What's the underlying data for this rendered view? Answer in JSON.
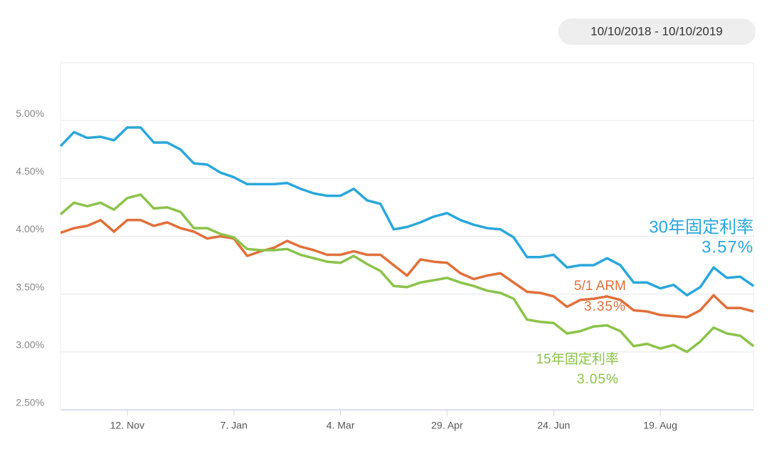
{
  "chart_data": {
    "type": "line",
    "subtitle": "10/10/2018 - 10/10/2019",
    "categories": [
      null,
      null,
      null,
      null,
      null,
      "12. Nov",
      null,
      null,
      null,
      null,
      null,
      null,
      null,
      "7. Jan",
      null,
      null,
      null,
      null,
      null,
      null,
      null,
      "4. Mar",
      null,
      null,
      null,
      null,
      null,
      null,
      null,
      "29. Apr",
      null,
      null,
      null,
      null,
      null,
      null,
      null,
      "24. Jun",
      null,
      null,
      null,
      null,
      null,
      null,
      null,
      "19. Aug",
      null,
      null,
      null,
      null,
      null,
      null,
      null
    ],
    "ylim": [
      2.5,
      5.5
    ],
    "yticks": [
      {
        "value": 2.5,
        "label": "2.50%"
      },
      {
        "value": 3,
        "label": "3.00%"
      },
      {
        "value": 3.5,
        "label": "3.50%"
      },
      {
        "value": 4,
        "label": "4.00%"
      },
      {
        "value": 4.5,
        "label": "4.50%"
      },
      {
        "value": 5,
        "label": "5.00%"
      }
    ],
    "grid": true,
    "series": [
      {
        "name": "30年固定利率",
        "color": "#2aa7dc",
        "values": [
          4.78,
          4.9,
          4.85,
          4.86,
          4.83,
          4.94,
          4.94,
          4.81,
          4.81,
          4.75,
          4.63,
          4.62,
          4.55,
          4.51,
          4.45,
          4.45,
          4.45,
          4.46,
          4.41,
          4.37,
          4.35,
          4.35,
          4.41,
          4.31,
          4.28,
          4.06,
          4.08,
          4.12,
          4.17,
          4.2,
          4.14,
          4.1,
          4.07,
          4.06,
          3.99,
          3.82,
          3.82,
          3.84,
          3.73,
          3.75,
          3.75,
          3.81,
          3.75,
          3.6,
          3.6,
          3.55,
          3.58,
          3.49,
          3.56,
          3.73,
          3.64,
          3.65,
          3.57
        ],
        "value_labels": [
          null,
          null,
          null,
          null,
          null,
          null,
          null,
          null,
          null,
          null,
          null,
          null,
          null,
          null,
          null,
          null,
          null,
          null,
          null,
          null,
          null,
          null,
          null,
          null,
          null,
          null,
          null,
          null,
          null,
          null,
          null,
          null,
          null,
          null,
          null,
          null,
          null,
          null,
          null,
          null,
          null,
          null,
          null,
          null,
          null,
          null,
          null,
          null,
          null,
          null,
          null,
          null,
          "3.57%"
        ]
      },
      {
        "name": "5/1 ARM",
        "color": "#e0703a",
        "values": [
          4.03,
          4.07,
          4.09,
          4.14,
          4.04,
          4.14,
          4.14,
          4.09,
          4.12,
          4.07,
          4.04,
          3.98,
          4.0,
          3.98,
          3.83,
          3.87,
          3.9,
          3.96,
          3.91,
          3.88,
          3.84,
          3.84,
          3.87,
          3.84,
          3.84,
          3.75,
          3.66,
          3.8,
          3.78,
          3.77,
          3.68,
          3.63,
          3.66,
          3.68,
          3.6,
          3.52,
          3.51,
          3.48,
          3.39,
          3.45,
          3.46,
          3.48,
          3.45,
          3.36,
          3.35,
          3.32,
          3.31,
          3.3,
          3.36,
          3.49,
          3.38,
          3.38,
          3.35
        ],
        "value_labels": [
          null,
          null,
          null,
          null,
          null,
          null,
          null,
          null,
          null,
          null,
          null,
          null,
          null,
          null,
          null,
          null,
          null,
          null,
          null,
          null,
          null,
          null,
          null,
          null,
          null,
          null,
          null,
          null,
          null,
          null,
          null,
          null,
          null,
          null,
          null,
          null,
          null,
          null,
          null,
          null,
          null,
          null,
          null,
          null,
          null,
          null,
          null,
          null,
          null,
          null,
          null,
          null,
          "3.35%"
        ]
      },
      {
        "name": "15年固定利率",
        "color": "#8bc34a",
        "values": [
          4.19,
          4.29,
          4.26,
          4.29,
          4.23,
          4.33,
          4.36,
          4.24,
          4.25,
          4.21,
          4.07,
          4.07,
          4.02,
          3.99,
          3.89,
          3.88,
          3.88,
          3.89,
          3.84,
          3.81,
          3.78,
          3.77,
          3.83,
          3.76,
          3.7,
          3.57,
          3.56,
          3.6,
          3.62,
          3.64,
          3.6,
          3.57,
          3.53,
          3.51,
          3.46,
          3.28,
          3.26,
          3.25,
          3.16,
          3.18,
          3.22,
          3.23,
          3.18,
          3.05,
          3.07,
          3.03,
          3.06,
          3.0,
          3.09,
          3.21,
          3.16,
          3.14,
          3.05
        ],
        "value_labels": [
          null,
          null,
          null,
          null,
          null,
          null,
          null,
          null,
          null,
          null,
          null,
          null,
          null,
          null,
          null,
          null,
          null,
          null,
          null,
          null,
          null,
          null,
          null,
          null,
          null,
          null,
          null,
          null,
          null,
          null,
          null,
          null,
          null,
          null,
          null,
          null,
          null,
          null,
          null,
          null,
          null,
          null,
          null,
          null,
          null,
          null,
          null,
          null,
          null,
          null,
          null,
          null,
          "3.05%"
        ]
      }
    ]
  }
}
